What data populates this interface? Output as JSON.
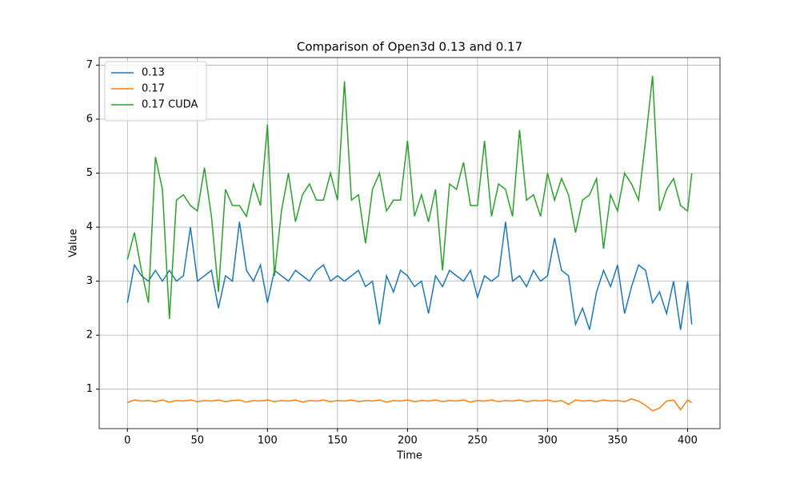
{
  "chart_data": {
    "type": "line",
    "title": "Comparison of Open3d 0.13 and 0.17",
    "xlabel": "Time",
    "ylabel": "Value",
    "x": [
      0,
      5,
      10,
      15,
      20,
      25,
      30,
      35,
      40,
      45,
      50,
      55,
      60,
      65,
      70,
      75,
      80,
      85,
      90,
      95,
      100,
      105,
      110,
      115,
      120,
      125,
      130,
      135,
      140,
      145,
      150,
      155,
      160,
      165,
      170,
      175,
      180,
      185,
      190,
      195,
      200,
      205,
      210,
      215,
      220,
      225,
      230,
      235,
      240,
      245,
      250,
      255,
      260,
      265,
      270,
      275,
      280,
      285,
      290,
      295,
      300,
      305,
      310,
      315,
      320,
      325,
      330,
      335,
      340,
      345,
      350,
      355,
      360,
      365,
      370,
      375,
      380,
      385,
      390,
      395,
      400,
      403
    ],
    "series": [
      {
        "name": "0.13",
        "color": "#1f77b4",
        "values": [
          2.6,
          3.3,
          3.1,
          3.0,
          3.2,
          3.0,
          3.2,
          3.0,
          3.1,
          4.0,
          3.0,
          3.1,
          3.2,
          2.5,
          3.1,
          3.0,
          4.1,
          3.2,
          3.0,
          3.3,
          2.6,
          3.2,
          3.1,
          3.0,
          3.2,
          3.1,
          3.0,
          3.2,
          3.3,
          3.0,
          3.1,
          3.0,
          3.1,
          3.2,
          2.9,
          3.0,
          2.2,
          3.1,
          2.8,
          3.2,
          3.1,
          2.9,
          3.0,
          2.4,
          3.1,
          2.9,
          3.2,
          3.1,
          3.0,
          3.2,
          2.7,
          3.1,
          3.0,
          3.1,
          4.1,
          3.0,
          3.1,
          2.9,
          3.2,
          3.0,
          3.1,
          3.8,
          3.2,
          3.1,
          2.2,
          2.5,
          2.1,
          2.8,
          3.2,
          2.9,
          3.3,
          2.4,
          2.9,
          3.3,
          3.2,
          2.6,
          2.8,
          2.4,
          3.0,
          2.1,
          3.0,
          2.2
        ]
      },
      {
        "name": "0.17",
        "color": "#ff7f0e",
        "values": [
          0.75,
          0.8,
          0.78,
          0.79,
          0.77,
          0.8,
          0.76,
          0.79,
          0.78,
          0.8,
          0.77,
          0.79,
          0.78,
          0.8,
          0.77,
          0.79,
          0.8,
          0.76,
          0.79,
          0.78,
          0.8,
          0.77,
          0.79,
          0.78,
          0.8,
          0.76,
          0.79,
          0.78,
          0.8,
          0.77,
          0.79,
          0.78,
          0.8,
          0.77,
          0.79,
          0.78,
          0.8,
          0.76,
          0.79,
          0.78,
          0.8,
          0.77,
          0.79,
          0.78,
          0.8,
          0.77,
          0.79,
          0.78,
          0.8,
          0.76,
          0.79,
          0.78,
          0.8,
          0.77,
          0.79,
          0.78,
          0.8,
          0.77,
          0.79,
          0.78,
          0.8,
          0.77,
          0.79,
          0.72,
          0.8,
          0.78,
          0.79,
          0.77,
          0.8,
          0.78,
          0.79,
          0.77,
          0.82,
          0.78,
          0.7,
          0.6,
          0.65,
          0.78,
          0.8,
          0.62,
          0.8,
          0.75
        ]
      },
      {
        "name": "0.17 CUDA",
        "color": "#2ca02c",
        "values": [
          3.4,
          3.9,
          3.2,
          2.6,
          5.3,
          4.7,
          2.3,
          4.5,
          4.6,
          4.4,
          4.3,
          5.1,
          4.2,
          2.8,
          4.7,
          4.4,
          4.4,
          4.2,
          4.8,
          4.4,
          5.9,
          3.1,
          4.3,
          5.0,
          4.1,
          4.6,
          4.8,
          4.5,
          4.5,
          5.0,
          4.5,
          6.7,
          4.5,
          4.6,
          3.7,
          4.7,
          5.0,
          4.3,
          4.5,
          4.5,
          5.6,
          4.2,
          4.6,
          4.1,
          4.7,
          3.2,
          4.8,
          4.7,
          5.2,
          4.4,
          4.4,
          5.6,
          4.2,
          4.8,
          4.7,
          4.2,
          5.8,
          4.5,
          4.6,
          4.2,
          5.0,
          4.5,
          4.9,
          4.6,
          3.9,
          4.5,
          4.6,
          4.9,
          3.6,
          4.6,
          4.3,
          5.0,
          4.8,
          4.5,
          5.6,
          6.8,
          4.3,
          4.7,
          4.9,
          4.4,
          4.3,
          5.0
        ]
      }
    ],
    "xlim": [
      -20.15,
      423.15
    ],
    "ylim": [
      0.27,
      7.14
    ],
    "xticks": [
      0,
      50,
      100,
      150,
      200,
      250,
      300,
      350,
      400
    ],
    "yticks": [
      1,
      2,
      3,
      4,
      5,
      6,
      7
    ],
    "grid": true,
    "legend": "upper left"
  }
}
